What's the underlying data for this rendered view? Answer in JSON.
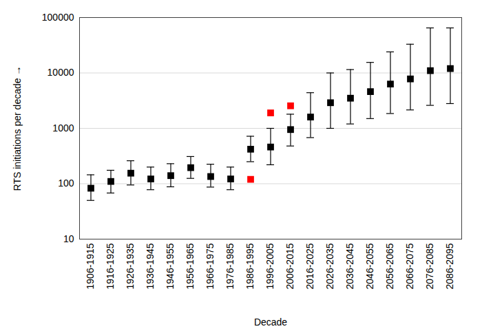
{
  "chart_data": {
    "type": "scatter",
    "x_label": "Decade",
    "y_label": "RTS initiations per decade",
    "categories": [
      "1906-1915",
      "1916-1925",
      "1926-1935",
      "1936-1945",
      "1946-1955",
      "1956-1965",
      "1966-1975",
      "1976-1985",
      "1986-1995",
      "1996-2005",
      "2006-2015",
      "2016-2025",
      "2026-2035",
      "2036-2045",
      "2046-2055",
      "2056-2065",
      "2066-2075",
      "2076-2085",
      "2086-2095"
    ],
    "series": [
      {
        "color": "#000000",
        "marker": "square",
        "values": [
          83,
          110,
          155,
          122,
          140,
          195,
          135,
          122,
          420,
          460,
          950,
          1600,
          2900,
          3500,
          4600,
          6300,
          7800,
          11000,
          12000
        ],
        "error_low": [
          50,
          68,
          95,
          78,
          88,
          125,
          87,
          78,
          250,
          220,
          480,
          680,
          1000,
          1200,
          1500,
          1850,
          2150,
          2600,
          2800
        ],
        "error_high": [
          145,
          175,
          260,
          200,
          230,
          310,
          225,
          200,
          720,
          1000,
          1800,
          4400,
          10000,
          11500,
          15500,
          24000,
          33000,
          65000,
          65000
        ]
      },
      {
        "color": "#ff0000",
        "marker": "square",
        "values": [
          null,
          null,
          null,
          null,
          null,
          null,
          null,
          null,
          120,
          1900,
          2550,
          null,
          null,
          null,
          null,
          null,
          null,
          null,
          null
        ]
      }
    ],
    "log": "y",
    "ylim": [
      10,
      100000
    ],
    "yticks": [
      10,
      100,
      1000,
      10000,
      100000
    ],
    "grid": true
  }
}
